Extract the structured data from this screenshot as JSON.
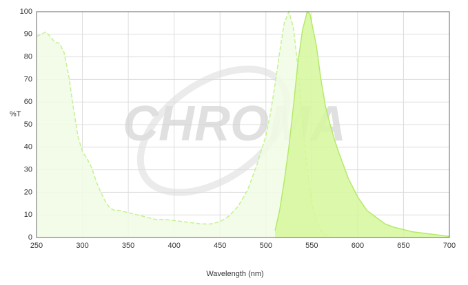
{
  "chart_data": {
    "type": "area",
    "watermark": "CHROMA",
    "x_label": "Wavelength (nm)",
    "y_label": "%T",
    "xlim": [
      250,
      700
    ],
    "xticks": [
      250,
      300,
      350,
      400,
      450,
      500,
      550,
      600,
      650,
      700
    ],
    "ylim": [
      0,
      100
    ],
    "yticks": [
      0,
      10,
      20,
      30,
      40,
      50,
      60,
      70,
      80,
      90,
      100
    ],
    "grid": true,
    "series": [
      {
        "color": "#c4f290",
        "fill": "#f1fce4",
        "dashed": true,
        "x": [
          250,
          255,
          260,
          265,
          270,
          275,
          280,
          285,
          290,
          295,
          300,
          305,
          310,
          315,
          320,
          325,
          330,
          335,
          340,
          350,
          360,
          370,
          380,
          390,
          400,
          410,
          420,
          430,
          440,
          450,
          460,
          470,
          480,
          490,
          500,
          505,
          510,
          515,
          520,
          525,
          530,
          535,
          540,
          545,
          550,
          555,
          560,
          565,
          570
        ],
        "values": [
          89,
          90,
          91,
          89,
          86.5,
          86,
          82,
          72,
          58,
          45,
          38,
          35,
          31,
          25,
          20,
          16,
          13,
          12,
          12,
          11,
          10,
          9,
          8,
          8,
          7.5,
          7,
          6.5,
          6,
          6,
          7,
          9.5,
          14,
          21,
          32,
          45,
          55,
          68,
          82,
          95,
          100,
          93,
          75,
          50,
          30,
          15,
          7,
          3,
          1,
          0.5
        ]
      },
      {
        "color": "#b4ea6a",
        "fill": "#d6f79c",
        "dashed": false,
        "x": [
          510,
          515,
          520,
          525,
          530,
          535,
          540,
          545,
          548,
          550,
          555,
          560,
          565,
          570,
          575,
          580,
          590,
          600,
          610,
          620,
          630,
          640,
          650,
          660,
          670,
          680,
          690,
          700
        ],
        "values": [
          3,
          12,
          25,
          40,
          58,
          78,
          92,
          100,
          99,
          95,
          85,
          70,
          58,
          50,
          43,
          37,
          26,
          18,
          12,
          9,
          6,
          4.5,
          3.5,
          2.5,
          2,
          1.5,
          1,
          0.5
        ]
      }
    ]
  }
}
